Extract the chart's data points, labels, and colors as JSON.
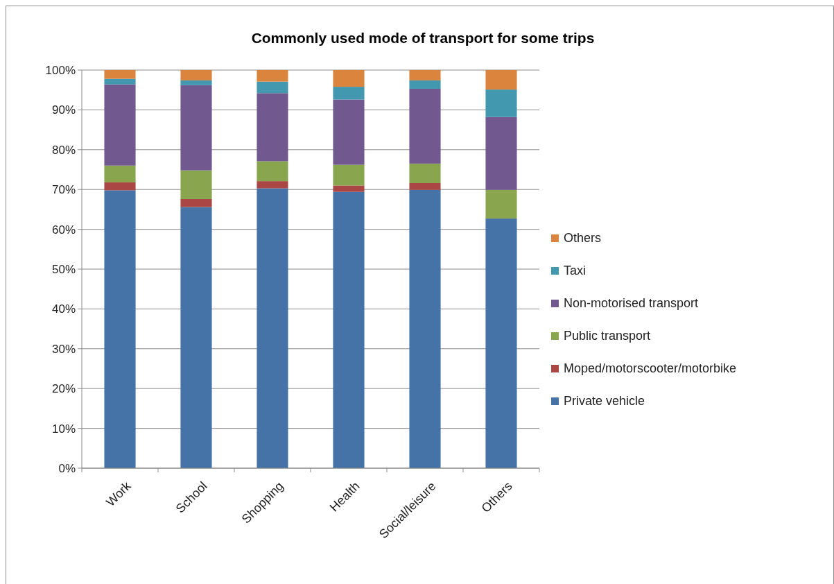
{
  "chart_data": {
    "type": "bar",
    "title": "Commonly used mode of transport for some trips",
    "categories": [
      "Work",
      "School",
      "Shopping",
      "Health",
      "Social/leisure",
      "Others"
    ],
    "stacked": true,
    "series": [
      {
        "name": "Private vehicle",
        "color": "#4572a7",
        "values": [
          69.8,
          65.6,
          70.3,
          69.4,
          69.9,
          62.7
        ]
      },
      {
        "name": "Moped/motorscooter/motorbike",
        "color": "#aa4643",
        "values": [
          2.0,
          2.0,
          1.8,
          1.6,
          1.7,
          0
        ]
      },
      {
        "name": "Public transport",
        "color": "#89a54e",
        "values": [
          4.2,
          7.2,
          5.0,
          5.2,
          4.9,
          7.2
        ]
      },
      {
        "name": "Non-motorised transport",
        "color": "#71588f",
        "values": [
          20.4,
          21.4,
          17.1,
          16.4,
          18.8,
          18.3
        ]
      },
      {
        "name": "Taxi",
        "color": "#4198af",
        "values": [
          1.4,
          1.2,
          2.9,
          3.2,
          2.1,
          6.9
        ]
      },
      {
        "name": "Others",
        "color": "#db843d",
        "values": [
          2.2,
          2.6,
          2.9,
          4.2,
          2.6,
          4.9
        ]
      }
    ],
    "ylim": [
      0,
      100
    ],
    "yticks": [
      {
        "value": 0,
        "label": "0%"
      },
      {
        "value": 10,
        "label": "10%"
      },
      {
        "value": 20,
        "label": "20%"
      },
      {
        "value": 30,
        "label": "30%"
      },
      {
        "value": 40,
        "label": "40%"
      },
      {
        "value": 50,
        "label": "50%"
      },
      {
        "value": 60,
        "label": "60%"
      },
      {
        "value": 70,
        "label": "70%"
      },
      {
        "value": 80,
        "label": "80%"
      },
      {
        "value": 90,
        "label": "90%"
      },
      {
        "value": 100,
        "label": "100%"
      }
    ],
    "grid": "y",
    "legend": "right"
  }
}
